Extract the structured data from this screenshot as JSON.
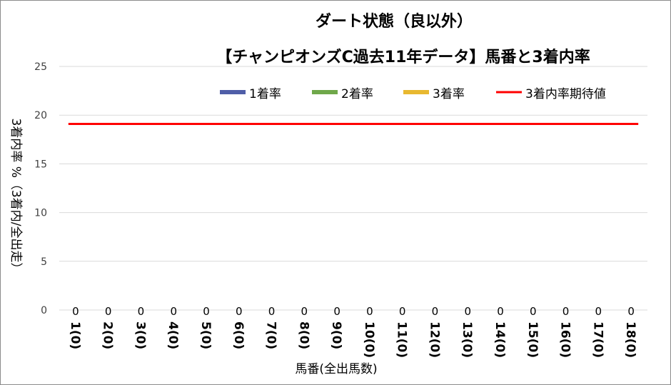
{
  "chart_data": {
    "type": "bar",
    "title": "ダート状態（良以外）",
    "subtitle": "【チャンピオンズC過去11年データ】馬番と3着内率",
    "xlabel": "馬番(全出馬数)",
    "ylabel": "3着内率 %（3着内/全出走）",
    "ylim": [
      0,
      25
    ],
    "yticks": [
      0,
      5,
      10,
      15,
      20,
      25
    ],
    "grid": true,
    "legend_position": "top",
    "categories": [
      "1(0)",
      "2(0)",
      "3(0)",
      "4(0)",
      "5(0)",
      "6(0)",
      "7(0)",
      "8(0)",
      "9(0)",
      "10(0)",
      "11(0)",
      "12(0)",
      "13(0)",
      "14(0)",
      "15(0)",
      "16(0)",
      "17(0)",
      "18(0)"
    ],
    "series": [
      {
        "name": "1着率",
        "type": "bar",
        "color": "#4f5ea8",
        "values": [
          0,
          0,
          0,
          0,
          0,
          0,
          0,
          0,
          0,
          0,
          0,
          0,
          0,
          0,
          0,
          0,
          0,
          0
        ]
      },
      {
        "name": "2着率",
        "type": "bar",
        "color": "#6fa84a",
        "values": [
          0,
          0,
          0,
          0,
          0,
          0,
          0,
          0,
          0,
          0,
          0,
          0,
          0,
          0,
          0,
          0,
          0,
          0
        ]
      },
      {
        "name": "3着率",
        "type": "bar",
        "color": "#e8b830",
        "values": [
          0,
          0,
          0,
          0,
          0,
          0,
          0,
          0,
          0,
          0,
          0,
          0,
          0,
          0,
          0,
          0,
          0,
          0
        ]
      },
      {
        "name": "3着内率期待値",
        "type": "line",
        "color": "#ff0000",
        "values": [
          19.1,
          19.1,
          19.1,
          19.1,
          19.1,
          19.1,
          19.1,
          19.1,
          19.1,
          19.1,
          19.1,
          19.1,
          19.1,
          19.1,
          19.1,
          19.1,
          19.1,
          19.1
        ]
      }
    ],
    "data_labels": [
      "0",
      "0",
      "0",
      "0",
      "0",
      "0",
      "0",
      "0",
      "0",
      "0",
      "0",
      "0",
      "0",
      "0",
      "0",
      "0",
      "0",
      "0"
    ]
  }
}
